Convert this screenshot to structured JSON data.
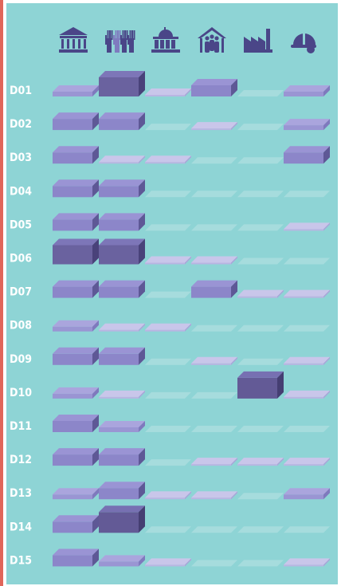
{
  "chart_data": {
    "type": "heatmap",
    "title": "",
    "columns": [
      {
        "icon": "museum-icon"
      },
      {
        "icon": "raised-hands-icon"
      },
      {
        "icon": "government-building-icon"
      },
      {
        "icon": "community-house-icon"
      },
      {
        "icon": "factory-icon"
      },
      {
        "icon": "hard-hat-icon"
      }
    ],
    "rows": [
      "D01",
      "D02",
      "D03",
      "D04",
      "D05",
      "D06",
      "D07",
      "D08",
      "D09",
      "D10",
      "D11",
      "D12",
      "D13",
      "D14",
      "D15"
    ],
    "values": [
      [
        2,
        4,
        1,
        3,
        0,
        2
      ],
      [
        3,
        3,
        0,
        1,
        0,
        2
      ],
      [
        3,
        1,
        1,
        0,
        0,
        3
      ],
      [
        3,
        3,
        0,
        0,
        0,
        0
      ],
      [
        3,
        3,
        0,
        0,
        0,
        1
      ],
      [
        4,
        4,
        1,
        1,
        0,
        0
      ],
      [
        3,
        3,
        0,
        3,
        1,
        1
      ],
      [
        2,
        1,
        1,
        0,
        0,
        0
      ],
      [
        3,
        3,
        0,
        1,
        0,
        1
      ],
      [
        2,
        1,
        0,
        0,
        5,
        1
      ],
      [
        3,
        2,
        0,
        0,
        0,
        0
      ],
      [
        3,
        3,
        0,
        1,
        1,
        1
      ],
      [
        2,
        3,
        1,
        1,
        0,
        2
      ],
      [
        3,
        5,
        0,
        0,
        0,
        0
      ],
      [
        3,
        2,
        1,
        0,
        0,
        1
      ]
    ],
    "scale_max": 5,
    "colors": {
      "background": "#8ed4d5",
      "empty": "#a6dcdd",
      "level_1_top": "#c9c6ea",
      "level_1_front": "#b9b5e2",
      "level_1_side": "#a9a4d8",
      "level_2_top": "#aaa5dd",
      "level_2_front": "#9a95d3",
      "level_2_side": "#7f79bd",
      "level_3_top": "#9a94d4",
      "level_3_front": "#8c86c9",
      "level_3_side": "#5e5896",
      "level_4_top": "#7d76b8",
      "level_4_front": "#6a629f",
      "level_4_side": "#49427a",
      "level_5_top": "#7770b2",
      "level_5_front": "#635a96",
      "level_5_side": "#453e72",
      "icon": "#4a4688",
      "row_label": "#ffffff",
      "accent_bar": "#e0665a"
    },
    "grid": false,
    "legend": "none"
  }
}
